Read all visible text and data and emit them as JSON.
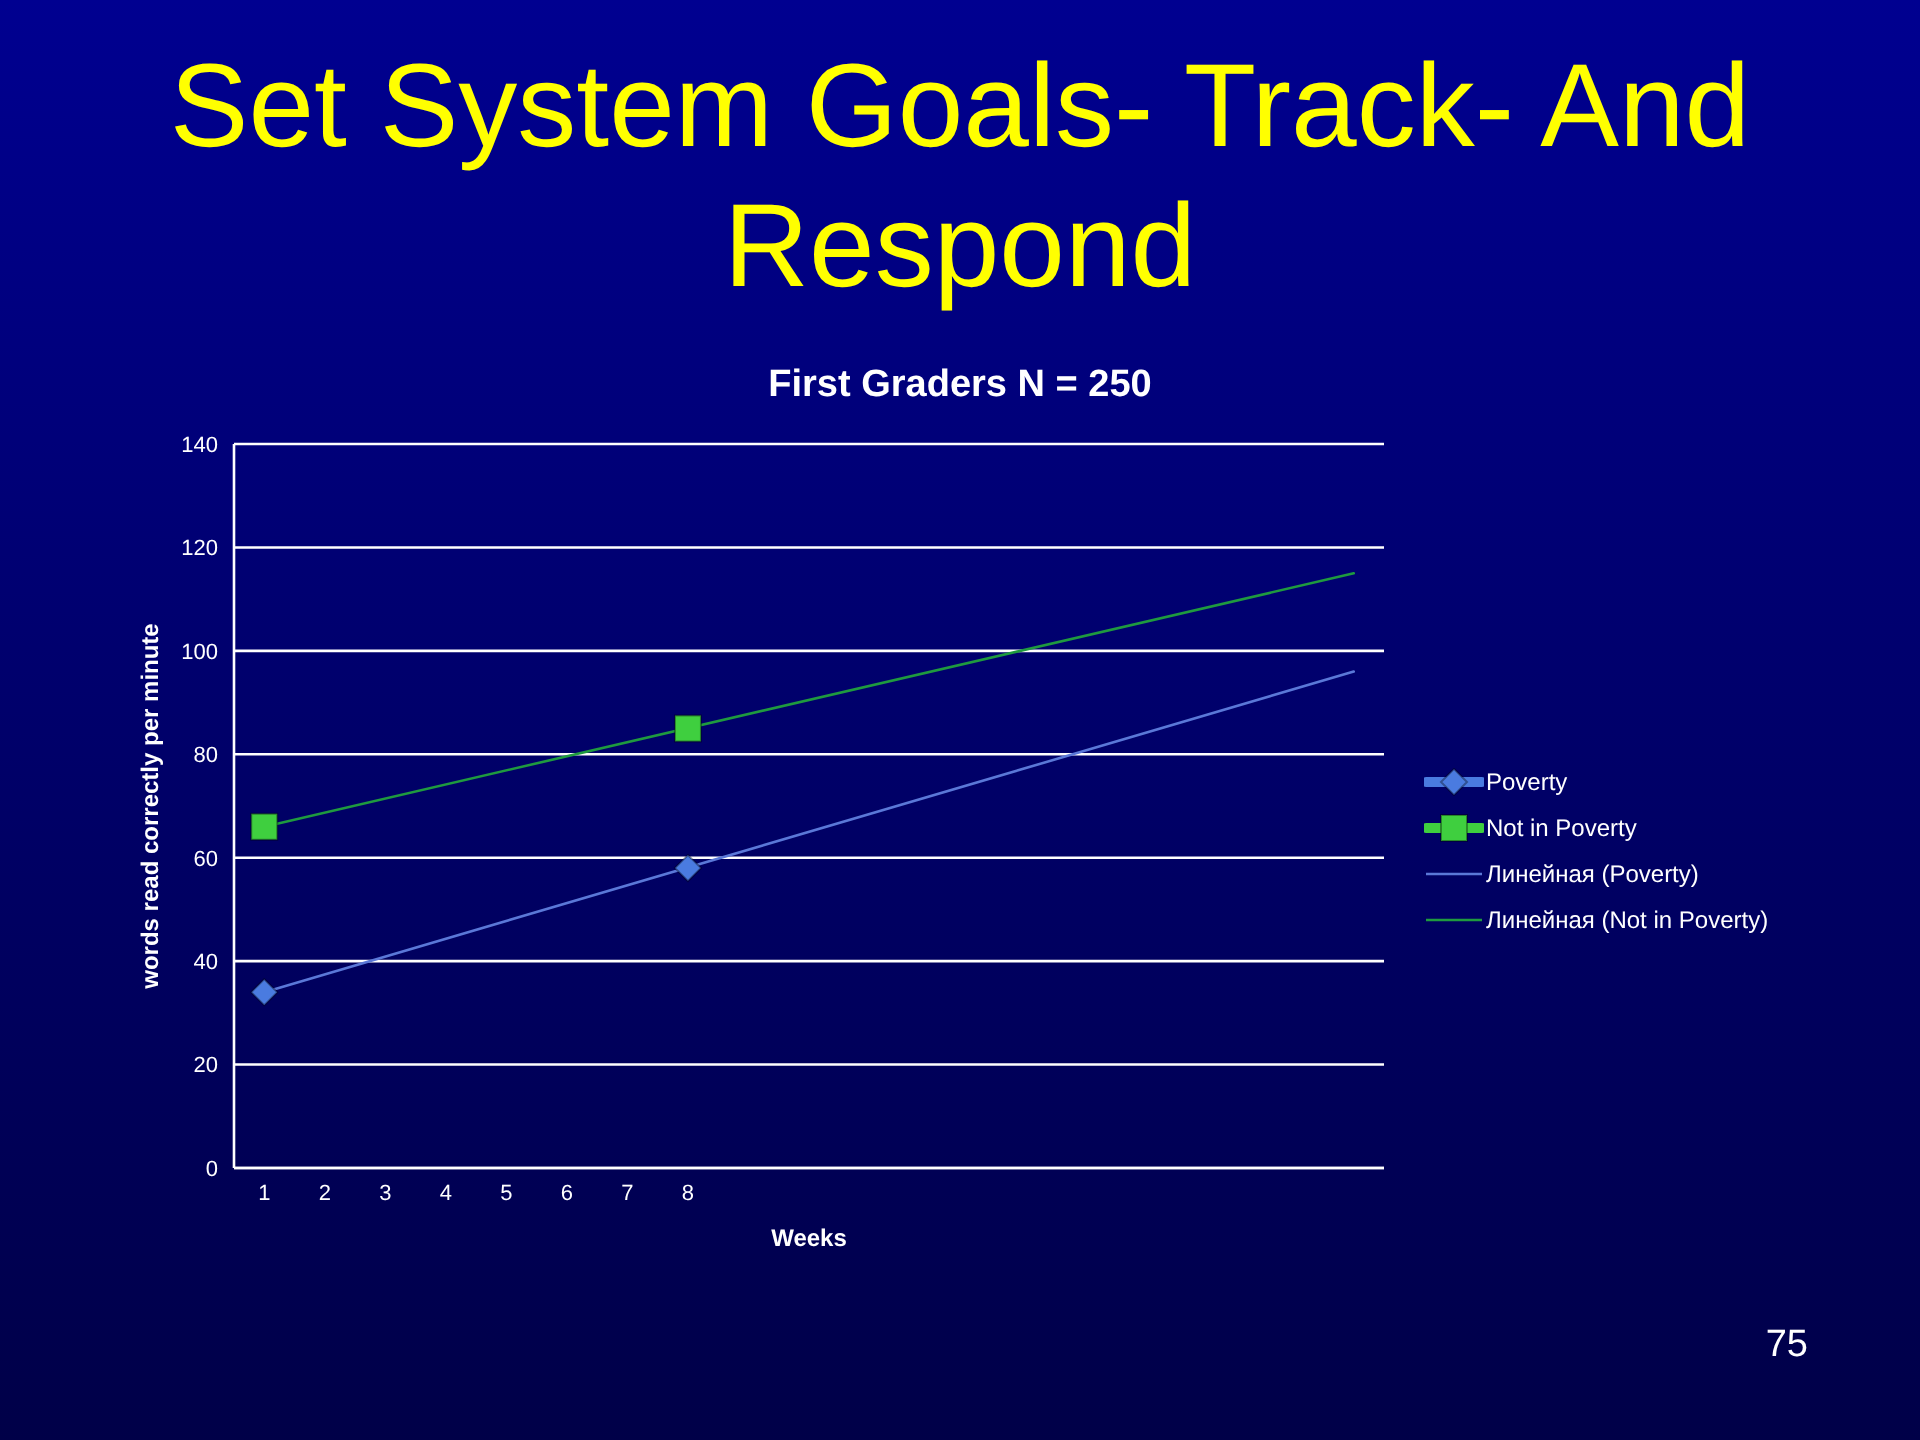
{
  "chart_data": {
    "type": "line",
    "title": "Set System Goals- Track- And Respond",
    "subtitle": "First Graders N = 250",
    "xlabel": "Weeks",
    "ylabel": "words read correctly per minute",
    "annotations": [
      "75"
    ],
    "xlim": [
      0.5,
      19.5
    ],
    "xticks": [
      1,
      2,
      3,
      4,
      5,
      6,
      7,
      8
    ],
    "ylim": [
      0,
      140
    ],
    "yticks": [
      0,
      20,
      40,
      60,
      80,
      100,
      120,
      140
    ],
    "grid": "y",
    "legend": "right",
    "series": [
      {
        "name": "Poverty",
        "type": "scatter",
        "marker": "diamond",
        "color": "#4a7be0",
        "x": [
          1,
          8
        ],
        "values": [
          34,
          58
        ]
      },
      {
        "name": "Not in Poverty",
        "type": "scatter",
        "marker": "square",
        "color": "#3fcf3f",
        "x": [
          1,
          8
        ],
        "values": [
          66,
          85
        ]
      },
      {
        "name": "Линейная (Poverty)",
        "type": "line",
        "marker": "none",
        "line_style": "solid",
        "color": "#5a78d8",
        "x": [
          1,
          19
        ],
        "values": [
          34,
          96
        ]
      },
      {
        "name": "Линейная (Not in Poverty)",
        "type": "line",
        "marker": "none",
        "line_style": "solid",
        "color": "#1f9a3f",
        "x": [
          1,
          19
        ],
        "values": [
          66,
          115
        ]
      }
    ]
  }
}
